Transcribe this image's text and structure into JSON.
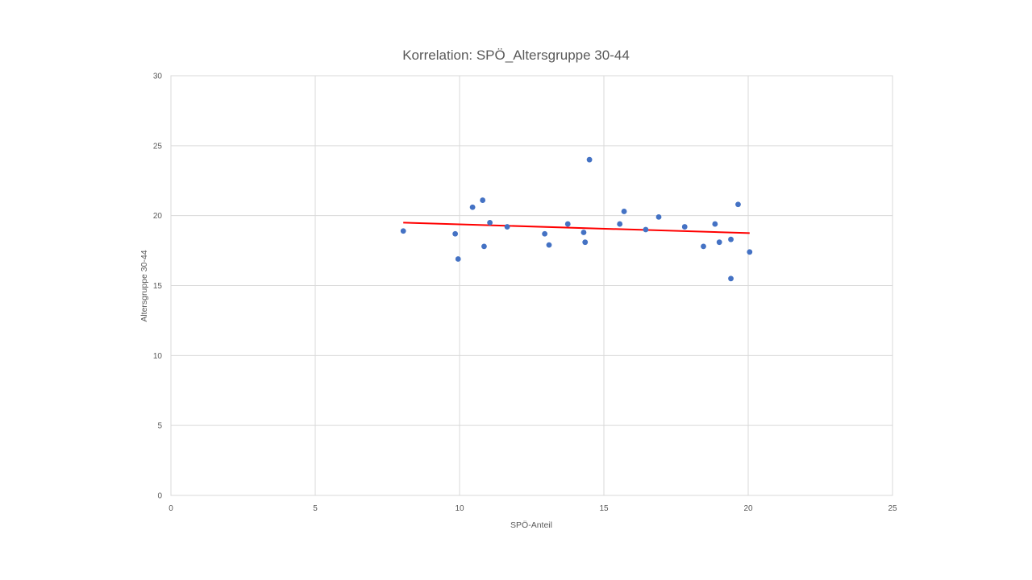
{
  "chart_data": {
    "type": "scatter",
    "title": "Korrelation: SPÖ_Altersgruppe 30-44",
    "xlabel": "SPÖ-Anteil",
    "ylabel": "Altersgruppe 30-44",
    "xlim": [
      0,
      25
    ],
    "ylim": [
      0,
      30
    ],
    "x_ticks": [
      0,
      5,
      10,
      15,
      20,
      25
    ],
    "y_ticks": [
      0,
      5,
      10,
      15,
      20,
      25,
      30
    ],
    "grid": true,
    "legend": "none",
    "series": [
      {
        "name": "Altersgruppe 30-44",
        "color": "#4472c4",
        "points": [
          {
            "x": 8.05,
            "y": 18.9
          },
          {
            "x": 9.85,
            "y": 18.7
          },
          {
            "x": 9.95,
            "y": 16.9
          },
          {
            "x": 10.45,
            "y": 20.6
          },
          {
            "x": 10.8,
            "y": 21.1
          },
          {
            "x": 10.85,
            "y": 17.8
          },
          {
            "x": 11.05,
            "y": 19.5
          },
          {
            "x": 11.65,
            "y": 19.2
          },
          {
            "x": 12.95,
            "y": 18.7
          },
          {
            "x": 13.1,
            "y": 17.9
          },
          {
            "x": 13.75,
            "y": 19.4
          },
          {
            "x": 14.3,
            "y": 18.8
          },
          {
            "x": 14.35,
            "y": 18.1
          },
          {
            "x": 14.5,
            "y": 24.0
          },
          {
            "x": 15.55,
            "y": 19.4
          },
          {
            "x": 15.7,
            "y": 20.3
          },
          {
            "x": 16.45,
            "y": 19.0
          },
          {
            "x": 16.9,
            "y": 19.9
          },
          {
            "x": 17.8,
            "y": 19.2
          },
          {
            "x": 18.45,
            "y": 17.8
          },
          {
            "x": 18.85,
            "y": 19.4
          },
          {
            "x": 19.0,
            "y": 18.1
          },
          {
            "x": 19.4,
            "y": 15.5
          },
          {
            "x": 19.4,
            "y": 18.3
          },
          {
            "x": 19.65,
            "y": 20.8
          },
          {
            "x": 20.05,
            "y": 17.4
          }
        ]
      }
    ],
    "trendline": {
      "type": "linear",
      "color": "#ff0000",
      "x": [
        8.05,
        20.05
      ],
      "y": [
        19.5,
        18.75
      ]
    }
  }
}
